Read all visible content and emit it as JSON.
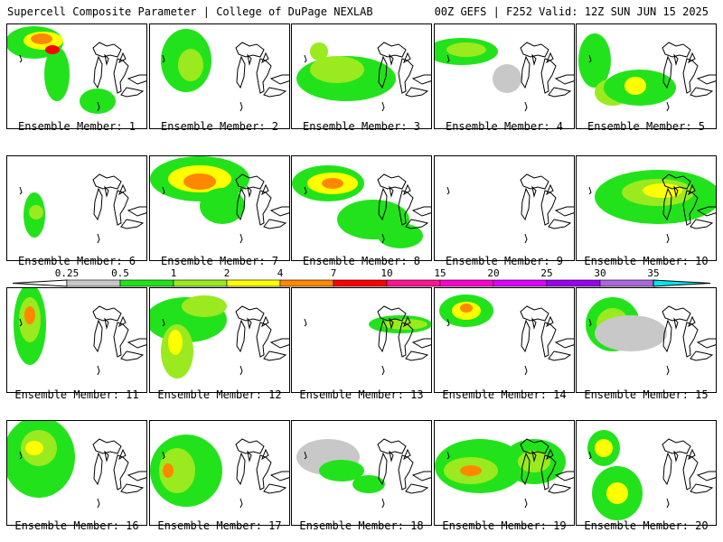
{
  "header": {
    "left": "Supercell Composite Parameter | College of DuPage NEXLAB",
    "right": "00Z GEFS | F252 Valid: 12Z SUN JUN 15 2025"
  },
  "colorbar": {
    "ticks": [
      "0.25",
      "0.5",
      "1",
      "2",
      "4",
      "7",
      "10",
      "15",
      "20",
      "25",
      "30",
      "35"
    ],
    "colors": [
      "#c8c8c8",
      "#22e31b",
      "#9aea1f",
      "#ffff00",
      "#ff8800",
      "#ff0000",
      "#ff1493",
      "#ff00cc",
      "#dd00ff",
      "#9900ee",
      "#aa66dd",
      "#00e5ee"
    ]
  },
  "panels": [
    {
      "caption": "Ensemble Member: 1"
    },
    {
      "caption": "Ensemble Member: 2"
    },
    {
      "caption": "Ensemble Member: 3"
    },
    {
      "caption": "Ensemble Member: 4"
    },
    {
      "caption": "Ensemble Member: 5"
    },
    {
      "caption": "Ensemble Member: 6"
    },
    {
      "caption": "Ensemble Member: 7"
    },
    {
      "caption": "Ensemble Member: 8"
    },
    {
      "caption": "Ensemble Member: 9"
    },
    {
      "caption": "Ensemble Member: 10"
    },
    {
      "caption": "Ensemble Member: 11"
    },
    {
      "caption": "Ensemble Member: 12"
    },
    {
      "caption": "Ensemble Member: 13"
    },
    {
      "caption": "Ensemble Member: 14"
    },
    {
      "caption": "Ensemble Member: 15"
    },
    {
      "caption": "Ensemble Member: 16"
    },
    {
      "caption": "Ensemble Member: 17"
    },
    {
      "caption": "Ensemble Member: 18"
    },
    {
      "caption": "Ensemble Member: 19"
    },
    {
      "caption": "Ensemble Member: 20"
    }
  ]
}
